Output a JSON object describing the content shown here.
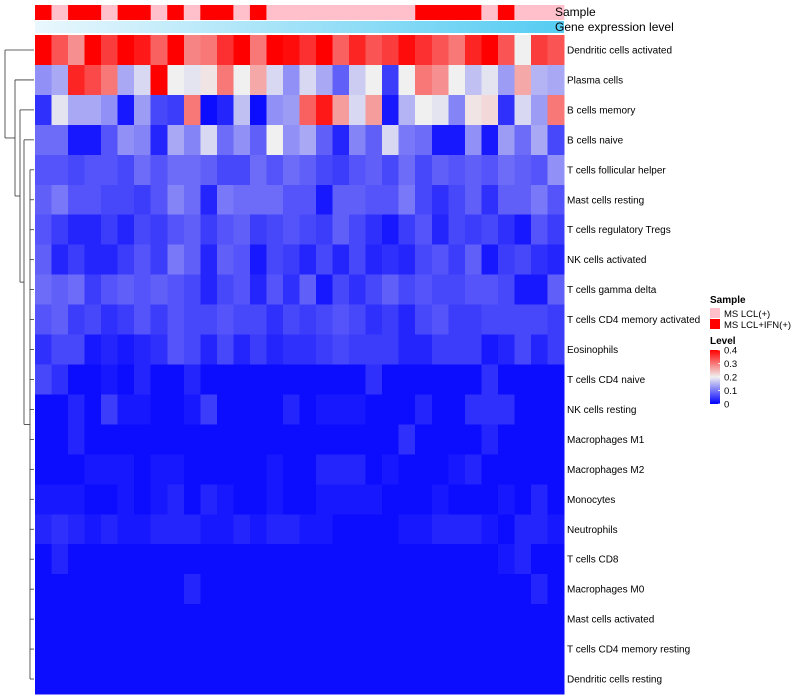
{
  "chart_data": {
    "type": "heatmap",
    "title": "",
    "annotation_tracks": [
      "Sample",
      "Gene expression level"
    ],
    "legend_sample": {
      "title": "Sample",
      "items": [
        {
          "label": "MS LCL(+)",
          "color": "#FFC0CB"
        },
        {
          "label": "MS LCL+IFN(+)",
          "color": "#FF0000"
        }
      ]
    },
    "legend_level": {
      "title": "Level",
      "ticks": [
        0,
        0.1,
        0.2,
        0.3,
        0.4
      ],
      "range": [
        0,
        0.4
      ]
    },
    "color_scale": {
      "low": "#0000FF",
      "mid": "#F0F0F0",
      "high": "#FF0000",
      "mid_value": 0.2,
      "max_value": 0.4
    },
    "gene_expression_gradient": [
      "#EAF7FD",
      "#55CCF2"
    ],
    "samples": [
      "R",
      "P",
      "R",
      "R",
      "P",
      "R",
      "R",
      "P",
      "R",
      "P",
      "R",
      "R",
      "P",
      "R",
      "P",
      "P",
      "P",
      "P",
      "P",
      "P",
      "P",
      "P",
      "P",
      "R",
      "R",
      "R",
      "R",
      "P",
      "R",
      "P",
      "P",
      "P"
    ],
    "rows": [
      "Dendritic cells activated",
      "Plasma cells",
      "B cells memory",
      "B cells naive",
      "T cells follicular helper",
      "Mast cells resting",
      "T cells regulatory  Tregs",
      "NK cells activated",
      "T cells gamma delta",
      "T cells CD4 memory activated",
      "Eosinophils",
      "T cells CD4 naive",
      "NK cells resting",
      "Macrophages M1",
      "Macrophages M2",
      "Monocytes",
      "Neutrophils",
      "T cells CD8",
      "Macrophages M0",
      "Mast cells activated",
      "T cells CD4 memory resting",
      "Dendritic cells resting"
    ],
    "values": [
      [
        0.4,
        0.33,
        0.28,
        0.4,
        0.35,
        0.4,
        0.38,
        0.32,
        0.4,
        0.29,
        0.3,
        0.36,
        0.4,
        0.3,
        0.4,
        0.39,
        0.36,
        0.4,
        0.32,
        0.37,
        0.33,
        0.35,
        0.39,
        0.36,
        0.33,
        0.3,
        0.37,
        0.4,
        0.33,
        0.2,
        0.35,
        0.33
      ],
      [
        0.12,
        0.14,
        0.37,
        0.34,
        0.3,
        0.14,
        0.18,
        0.4,
        0.2,
        0.19,
        0.21,
        0.3,
        0.2,
        0.26,
        0.18,
        0.12,
        0.18,
        0.14,
        0.08,
        0.17,
        0.2,
        0.05,
        0.2,
        0.3,
        0.28,
        0.2,
        0.16,
        0.19,
        0.13,
        0.26,
        0.15,
        0.14
      ],
      [
        0.04,
        0.19,
        0.14,
        0.14,
        0.12,
        0.02,
        0.13,
        0.06,
        0.05,
        0.3,
        0.01,
        0.03,
        0.16,
        0.01,
        0.12,
        0.13,
        0.32,
        0.38,
        0.27,
        0.18,
        0.27,
        0.02,
        0.15,
        0.2,
        0.19,
        0.11,
        0.21,
        0.22,
        0.04,
        0.18,
        0.13,
        0.3
      ],
      [
        0.09,
        0.09,
        0.02,
        0.02,
        0.07,
        0.12,
        0.11,
        0.03,
        0.14,
        0.11,
        0.18,
        0.09,
        0.12,
        0.08,
        0.2,
        0.12,
        0.14,
        0.08,
        0.03,
        0.11,
        0.08,
        0.18,
        0.1,
        0.09,
        0.02,
        0.02,
        0.12,
        0.02,
        0.13,
        0.09,
        0.14,
        0.06
      ],
      [
        0.07,
        0.07,
        0.06,
        0.07,
        0.07,
        0.06,
        0.09,
        0.07,
        0.09,
        0.09,
        0.08,
        0.06,
        0.06,
        0.09,
        0.07,
        0.09,
        0.08,
        0.06,
        0.05,
        0.07,
        0.08,
        0.06,
        0.09,
        0.06,
        0.08,
        0.07,
        0.08,
        0.07,
        0.09,
        0.08,
        0.07,
        0.12
      ],
      [
        0.08,
        0.1,
        0.07,
        0.07,
        0.06,
        0.06,
        0.05,
        0.07,
        0.11,
        0.09,
        0.03,
        0.1,
        0.09,
        0.09,
        0.09,
        0.07,
        0.07,
        0.02,
        0.08,
        0.08,
        0.07,
        0.07,
        0.1,
        0.06,
        0.04,
        0.06,
        0.08,
        0.04,
        0.08,
        0.08,
        0.1,
        0.07
      ],
      [
        0.07,
        0.05,
        0.03,
        0.03,
        0.05,
        0.03,
        0.06,
        0.05,
        0.07,
        0.08,
        0.05,
        0.07,
        0.08,
        0.05,
        0.06,
        0.07,
        0.06,
        0.05,
        0.08,
        0.06,
        0.04,
        0.02,
        0.05,
        0.07,
        0.03,
        0.06,
        0.05,
        0.06,
        0.04,
        0.02,
        0.07,
        0.05
      ],
      [
        0.08,
        0.03,
        0.05,
        0.03,
        0.03,
        0.05,
        0.07,
        0.05,
        0.1,
        0.08,
        0.03,
        0.08,
        0.07,
        0.02,
        0.06,
        0.05,
        0.03,
        0.06,
        0.03,
        0.06,
        0.03,
        0.04,
        0.03,
        0.06,
        0.07,
        0.05,
        0.08,
        0.02,
        0.05,
        0.06,
        0.04,
        0.03
      ],
      [
        0.09,
        0.08,
        0.09,
        0.05,
        0.07,
        0.08,
        0.07,
        0.08,
        0.07,
        0.06,
        0.03,
        0.06,
        0.07,
        0.03,
        0.07,
        0.04,
        0.08,
        0.02,
        0.06,
        0.04,
        0.06,
        0.08,
        0.06,
        0.07,
        0.06,
        0.06,
        0.07,
        0.07,
        0.06,
        0.02,
        0.02,
        0.08
      ],
      [
        0.07,
        0.08,
        0.05,
        0.06,
        0.04,
        0.05,
        0.07,
        0.05,
        0.07,
        0.06,
        0.06,
        0.07,
        0.06,
        0.06,
        0.04,
        0.06,
        0.05,
        0.06,
        0.07,
        0.06,
        0.04,
        0.05,
        0.03,
        0.06,
        0.07,
        0.05,
        0.05,
        0.06,
        0.06,
        0.06,
        0.06,
        0.05
      ],
      [
        0.04,
        0.06,
        0.06,
        0.02,
        0.03,
        0.02,
        0.03,
        0.04,
        0.07,
        0.06,
        0.03,
        0.06,
        0.03,
        0.05,
        0.03,
        0.04,
        0.04,
        0.05,
        0.06,
        0.05,
        0.05,
        0.05,
        0.03,
        0.03,
        0.05,
        0.05,
        0.05,
        0.02,
        0.03,
        0.06,
        0.03,
        0.05
      ],
      [
        0.06,
        0.04,
        0.01,
        0.01,
        0.02,
        0.01,
        0.03,
        0.01,
        0.01,
        0.03,
        0.01,
        0.01,
        0.01,
        0.01,
        0.01,
        0.01,
        0.01,
        0.01,
        0.01,
        0.01,
        0.04,
        0.01,
        0.01,
        0.01,
        0.01,
        0.01,
        0.01,
        0.04,
        0.01,
        0.01,
        0.01,
        0.01
      ],
      [
        0.01,
        0.01,
        0.03,
        0.01,
        0.05,
        0.02,
        0.02,
        0.01,
        0.01,
        0.02,
        0.05,
        0.01,
        0.01,
        0.01,
        0.01,
        0.03,
        0.01,
        0.02,
        0.02,
        0.02,
        0.01,
        0.01,
        0.01,
        0.03,
        0.01,
        0.01,
        0.04,
        0.04,
        0.04,
        0.01,
        0.01,
        0.01
      ],
      [
        0.01,
        0.01,
        0.03,
        0.01,
        0.01,
        0.01,
        0.01,
        0.01,
        0.01,
        0.01,
        0.01,
        0.01,
        0.01,
        0.01,
        0.01,
        0.01,
        0.01,
        0.01,
        0.01,
        0.01,
        0.01,
        0.01,
        0.04,
        0.01,
        0.01,
        0.01,
        0.01,
        0.03,
        0.01,
        0.01,
        0.01,
        0.01
      ],
      [
        0.01,
        0.01,
        0.01,
        0.02,
        0.02,
        0.02,
        0.01,
        0.02,
        0.02,
        0.01,
        0.01,
        0.01,
        0.01,
        0.01,
        0.02,
        0.01,
        0.01,
        0.03,
        0.03,
        0.03,
        0.01,
        0.02,
        0.01,
        0.01,
        0.01,
        0.02,
        0.03,
        0.01,
        0.01,
        0.01,
        0.01,
        0.01
      ],
      [
        0.02,
        0.02,
        0.02,
        0.01,
        0.01,
        0.02,
        0.01,
        0.02,
        0.03,
        0.01,
        0.03,
        0.02,
        0.01,
        0.01,
        0.02,
        0.01,
        0.01,
        0.02,
        0.02,
        0.02,
        0.02,
        0.01,
        0.01,
        0.01,
        0.02,
        0.01,
        0.01,
        0.01,
        0.02,
        0.01,
        0.03,
        0.01
      ],
      [
        0.03,
        0.04,
        0.03,
        0.02,
        0.03,
        0.02,
        0.02,
        0.03,
        0.03,
        0.03,
        0.02,
        0.02,
        0.03,
        0.02,
        0.03,
        0.03,
        0.02,
        0.02,
        0.01,
        0.01,
        0.01,
        0.01,
        0.02,
        0.02,
        0.03,
        0.03,
        0.03,
        0.02,
        0.01,
        0.03,
        0.03,
        0.02
      ],
      [
        0.01,
        0.03,
        0.01,
        0.01,
        0.01,
        0.01,
        0.01,
        0.01,
        0.01,
        0.01,
        0.01,
        0.01,
        0.01,
        0.01,
        0.01,
        0.01,
        0.01,
        0.01,
        0.01,
        0.01,
        0.01,
        0.01,
        0.01,
        0.01,
        0.01,
        0.01,
        0.01,
        0.01,
        0.02,
        0.03,
        0.01,
        0.01
      ],
      [
        0.01,
        0.01,
        0.01,
        0.01,
        0.01,
        0.01,
        0.01,
        0.01,
        0.01,
        0.03,
        0.01,
        0.01,
        0.01,
        0.01,
        0.01,
        0.01,
        0.01,
        0.01,
        0.01,
        0.01,
        0.01,
        0.01,
        0.01,
        0.01,
        0.01,
        0.01,
        0.01,
        0.01,
        0.01,
        0.01,
        0.03,
        0.01
      ],
      [
        0.01,
        0.01,
        0.01,
        0.01,
        0.01,
        0.01,
        0.01,
        0.01,
        0.01,
        0.01,
        0.01,
        0.01,
        0.01,
        0.01,
        0.01,
        0.01,
        0.01,
        0.01,
        0.01,
        0.01,
        0.01,
        0.01,
        0.01,
        0.01,
        0.01,
        0.01,
        0.01,
        0.01,
        0.01,
        0.01,
        0.01,
        0.01
      ],
      [
        0.01,
        0.01,
        0.01,
        0.01,
        0.01,
        0.01,
        0.01,
        0.01,
        0.01,
        0.01,
        0.01,
        0.01,
        0.01,
        0.01,
        0.01,
        0.01,
        0.01,
        0.01,
        0.01,
        0.01,
        0.01,
        0.01,
        0.01,
        0.01,
        0.01,
        0.01,
        0.01,
        0.01,
        0.01,
        0.01,
        0.01,
        0.01
      ],
      [
        0.01,
        0.01,
        0.01,
        0.01,
        0.01,
        0.01,
        0.01,
        0.01,
        0.01,
        0.01,
        0.01,
        0.01,
        0.01,
        0.01,
        0.01,
        0.01,
        0.01,
        0.01,
        0.01,
        0.01,
        0.01,
        0.01,
        0.01,
        0.01,
        0.01,
        0.01,
        0.01,
        0.01,
        0.01,
        0.01,
        0.01,
        0.01
      ]
    ]
  }
}
